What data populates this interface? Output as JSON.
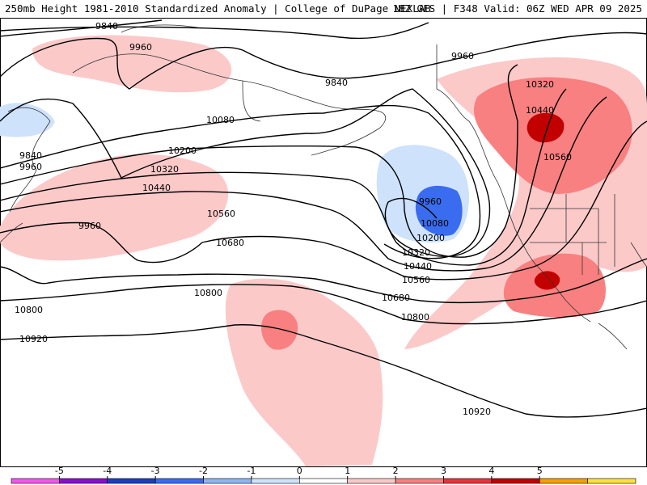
{
  "header": {
    "left": "250mb Height 1981-2010 Standardized Anomaly | College of DuPage NEXLAB",
    "right": "18Z GFS | F348 Valid: 06Z WED APR 09 2025"
  },
  "contour_labels": [
    "9840",
    "9960",
    "9960",
    "9840",
    "9840",
    "9960",
    "10080",
    "10200",
    "10320",
    "10440",
    "10560",
    "10680",
    "10800",
    "10800",
    "10920",
    "9960",
    "10320",
    "10440",
    "10560",
    "9960",
    "10080",
    "10200",
    "10320",
    "10440",
    "10560",
    "10680",
    "10800",
    "10920"
  ],
  "legend": {
    "ticks": [
      "-5",
      "-4",
      "-3",
      "-2",
      "-1",
      "0",
      "1",
      "2",
      "3",
      "4",
      "5"
    ],
    "colors": [
      "#ef59ef",
      "#8a10c8",
      "#1a40b8",
      "#3a6cf0",
      "#8fb4f4",
      "#cfe2fb",
      "#ffffff",
      "#fcc9c9",
      "#f98080",
      "#e8353a",
      "#c20000",
      "#f5a000",
      "#ffe040"
    ]
  },
  "colors": {
    "contour": "#000000",
    "coast": "#333333"
  }
}
